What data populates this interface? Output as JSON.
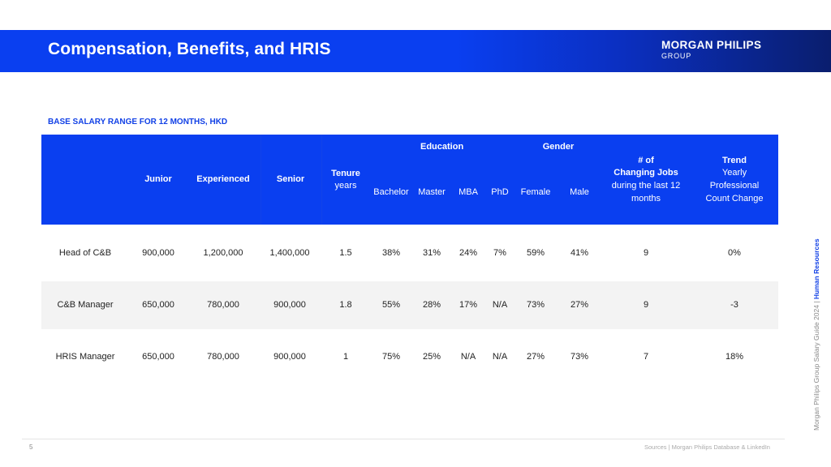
{
  "header": {
    "title": "Compensation, Benefits, and HRIS",
    "logo_main": "MORGAN PHILIPS",
    "logo_sub": "GROUP"
  },
  "subtitle": "BASE SALARY RANGE FOR 12 MONTHS, HKD",
  "table": {
    "group_headers": {
      "education": "Education",
      "gender": "Gender"
    },
    "columns": {
      "junior": "Junior",
      "experienced": "Experienced",
      "senior": "Senior",
      "tenure": "Tenure",
      "tenure_unit": "years",
      "bachelor": "Bachelor",
      "master": "Master",
      "mba": "MBA",
      "phd": "PhD",
      "female": "Female",
      "male": "Male",
      "jobs_line1": "# of",
      "jobs_line2": "Changing Jobs",
      "jobs_line3": "during the last 12",
      "jobs_line4": "months",
      "trend_line1": "Trend",
      "trend_line2": "Yearly",
      "trend_line3": "Professional",
      "trend_line4": "Count Change"
    },
    "rows": [
      {
        "role": "Head of C&B",
        "junior": "900,000",
        "experienced": "1,200,000",
        "senior": "1,400,000",
        "tenure": "1.5",
        "bachelor": "38%",
        "master": "31%",
        "mba": "24%",
        "phd": "7%",
        "female": "59%",
        "male": "41%",
        "jobs": "9",
        "trend": "0%"
      },
      {
        "role": "C&B Manager",
        "junior": "650,000",
        "experienced": "780,000",
        "senior": "900,000",
        "tenure": "1.8",
        "bachelor": "55%",
        "master": "28%",
        "mba": "17%",
        "phd": "N/A",
        "female": "73%",
        "male": "27%",
        "jobs": "9",
        "trend": "-3"
      },
      {
        "role": "HRIS Manager",
        "junior": "650,000",
        "experienced": "780,000",
        "senior": "900,000",
        "tenure": "1",
        "bachelor": "75%",
        "master": "25%",
        "mba": "N/A",
        "phd": "N/A",
        "female": "27%",
        "male": "73%",
        "jobs": "7",
        "trend": "18%"
      }
    ]
  },
  "footer": {
    "page_number": "5",
    "sources": "Sources | Morgan Philips Database & LinkedIn",
    "side_text": "Morgan Philips Group Salary Guide 2024 | ",
    "side_highlight": "Human Resources"
  }
}
